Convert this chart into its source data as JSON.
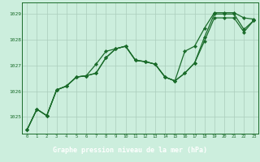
{
  "hours": [
    0,
    1,
    2,
    3,
    4,
    5,
    6,
    7,
    8,
    9,
    10,
    11,
    12,
    13,
    14,
    15,
    16,
    17,
    18,
    19,
    20,
    21,
    22,
    23
  ],
  "s1": [
    1024.5,
    1025.3,
    1025.05,
    1026.05,
    1026.2,
    1026.55,
    1026.6,
    1027.05,
    1027.55,
    1027.65,
    1027.75,
    1027.2,
    1027.15,
    1027.05,
    1026.55,
    1026.4,
    1027.55,
    1027.75,
    1028.45,
    1029.05,
    1029.05,
    1029.05,
    1028.85,
    1028.8
  ],
  "s2": [
    1024.5,
    1025.3,
    1025.05,
    1026.05,
    1026.2,
    1026.55,
    1026.6,
    1026.7,
    1027.3,
    1027.65,
    1027.75,
    1027.2,
    1027.15,
    1027.05,
    1026.55,
    1026.4,
    1026.7,
    1027.1,
    1028.1,
    1029.0,
    1029.0,
    1029.0,
    1028.4,
    1028.75
  ],
  "s3": [
    1024.5,
    1025.3,
    1025.05,
    1026.05,
    1026.2,
    1026.55,
    1026.6,
    1026.7,
    1027.3,
    1027.65,
    1027.75,
    1027.2,
    1027.15,
    1027.05,
    1026.55,
    1026.4,
    1026.7,
    1027.1,
    1027.95,
    1028.85,
    1028.85,
    1028.85,
    1028.3,
    1028.75
  ],
  "bg_color": "#cceedd",
  "grid_color": "#aaccbb",
  "line_color": "#1a6b2a",
  "ylabel_vals": [
    1025,
    1026,
    1027,
    1028,
    1029
  ],
  "ylim": [
    1024.35,
    1029.45
  ],
  "xlim": [
    -0.5,
    23.5
  ],
  "xlabel": "Graphe pression niveau de la mer (hPa)",
  "label_bg": "#2d7a3a"
}
